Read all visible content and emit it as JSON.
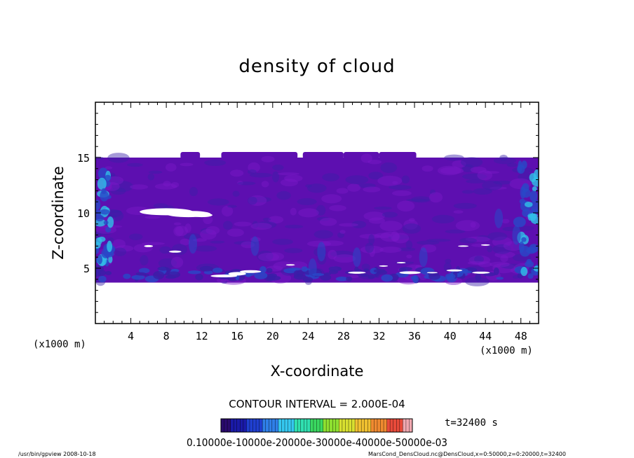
{
  "chart_data": {
    "type": "heatmap",
    "title": "density of cloud",
    "xlabel": "X-coordinate",
    "ylabel": "Z-coordinate",
    "x_units": "(x1000 m)",
    "y_units": "(x1000 m)",
    "xlim": [
      0,
      50
    ],
    "ylim": [
      0,
      20
    ],
    "x_ticks": [
      4,
      8,
      12,
      16,
      20,
      24,
      28,
      32,
      36,
      40,
      44,
      48
    ],
    "y_ticks": [
      5,
      10,
      15
    ],
    "cloud_band": {
      "z_bottom": 3.7,
      "z_top": 15.0,
      "dominant_value": 0.0002
    },
    "contour_interval": "CONTOUR INTERVAL = 2.000E-04",
    "time_label": "t=32400 s",
    "colorbar": {
      "range": [
        0.0,
        0.0006
      ],
      "tick_text": "0.10000e-10000e-20000e-30000e-40000e-50000e-03",
      "colors": [
        "#2a0a6e",
        "#1a1aa8",
        "#1f3fd0",
        "#2f7fe8",
        "#35c8f0",
        "#30e0b0",
        "#3ad860",
        "#8ee030",
        "#d8e030",
        "#f0c030",
        "#f08a30",
        "#e84a3a",
        "#f0a8b0"
      ]
    }
  },
  "footer": {
    "left": "/usr/bin/gpview   2008-10-18",
    "right": "MarsCond_DensCloud.nc@DensCloud,x=0:50000,z=0:20000,t=32400"
  },
  "colors": {
    "band_base": "#5d0fb0",
    "band_light": "#7a18c8",
    "band_dark": "#3a1ea8",
    "band_blue": "#2848c8",
    "band_cyan": "#30c0e8"
  }
}
